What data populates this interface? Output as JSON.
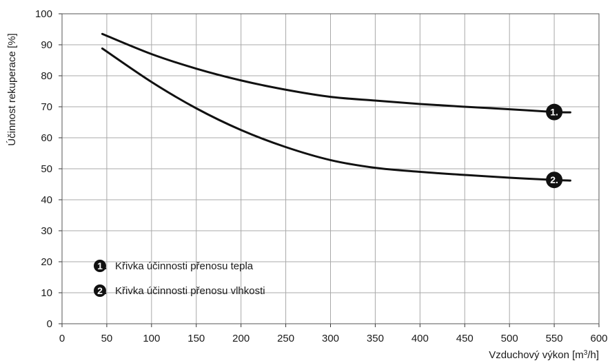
{
  "chart_data": {
    "type": "line",
    "ylabel": "Účinnost rekuperace [%]",
    "xlabel_main": "Vzduchový výkon [m",
    "xlabel_sup": "3",
    "xlabel_tail": "/h]",
    "xlim": [
      0,
      600
    ],
    "ylim": [
      0,
      100
    ],
    "x_ticks": [
      "0",
      "50",
      "100",
      "150",
      "200",
      "250",
      "300",
      "350",
      "400",
      "450",
      "500",
      "550",
      "600"
    ],
    "y_ticks": [
      "0",
      "10",
      "20",
      "30",
      "40",
      "50",
      "60",
      "70",
      "80",
      "90",
      "100"
    ],
    "grid": true,
    "series": [
      {
        "name": "Křivka účinnosti přenosu tepla",
        "marker": "1.",
        "x": [
          45,
          100,
          150,
          200,
          250,
          300,
          350,
          400,
          450,
          500,
          550,
          568
        ],
        "y": [
          93.5,
          87,
          82.3,
          78.5,
          75.5,
          73.2,
          72,
          70.9,
          70,
          69.2,
          68.3,
          68.2
        ]
      },
      {
        "name": "Křivka účinnosti přenosu vlhkosti",
        "marker": "2.",
        "x": [
          45,
          100,
          150,
          200,
          250,
          300,
          350,
          400,
          450,
          500,
          550,
          568
        ],
        "y": [
          88.8,
          78,
          69.5,
          62.5,
          57,
          52.8,
          50.3,
          49,
          48,
          47.1,
          46.4,
          46.2
        ]
      }
    ],
    "legend": [
      {
        "marker": "1",
        "label": "Křivka účinnosti přenosu tepla"
      },
      {
        "marker": "2",
        "label": "Křivka účinnosti přenosu vlhkosti"
      }
    ],
    "legend_position": "bottom-left"
  }
}
